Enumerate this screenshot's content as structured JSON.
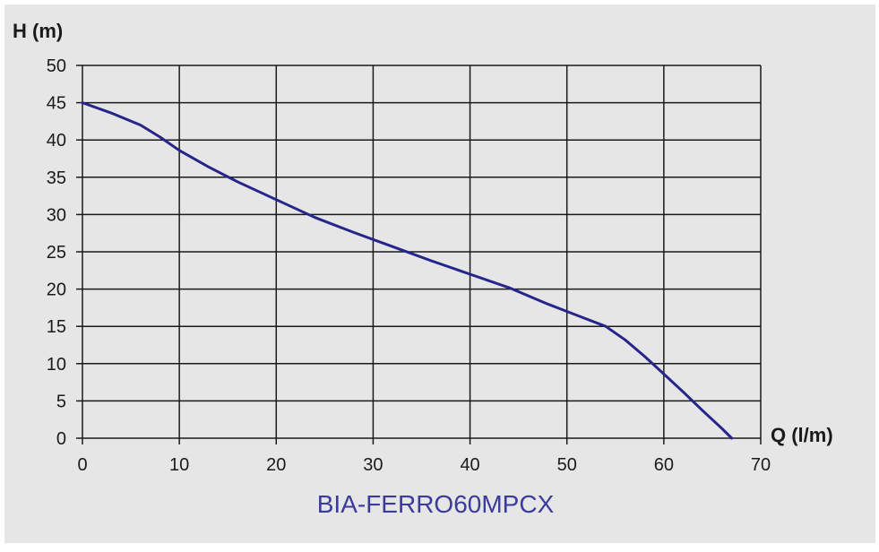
{
  "colors": {
    "background": "#e6e6e6",
    "grid": "#1a1a1a",
    "curve": "#25258c",
    "caption": "#3b3b9e"
  },
  "chart_data": {
    "type": "line",
    "title": "",
    "xlabel": "Q (l/m)",
    "ylabel": "H (m)",
    "xlim": [
      0,
      70
    ],
    "ylim": [
      0,
      50
    ],
    "xticks": [
      0,
      10,
      20,
      30,
      40,
      50,
      60,
      70
    ],
    "yticks": [
      0,
      5,
      10,
      15,
      20,
      25,
      30,
      35,
      40,
      45,
      50
    ],
    "grid": true,
    "caption": "BIA-FERRO60MPCX",
    "series": [
      {
        "x": [
          0,
          3,
          6,
          8,
          10,
          13,
          16,
          20,
          24,
          28,
          32,
          36,
          40,
          44,
          48,
          52,
          54,
          56,
          58,
          60,
          62,
          64,
          66,
          67
        ],
        "y": [
          45,
          43.6,
          42,
          40.4,
          38.6,
          36.4,
          34.4,
          32,
          29.6,
          27.6,
          25.7,
          23.8,
          22,
          20.2,
          18,
          16,
          15,
          13.2,
          11,
          8.6,
          6.2,
          3.7,
          1.3,
          0
        ]
      }
    ]
  }
}
